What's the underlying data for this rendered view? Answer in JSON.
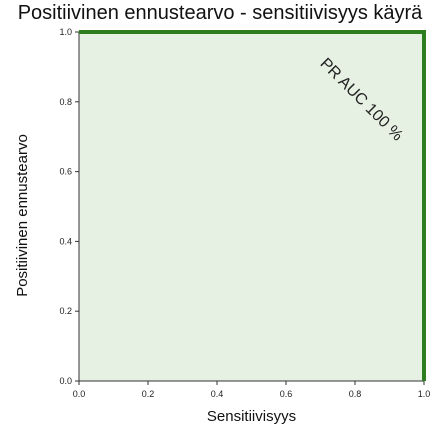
{
  "chart_data": {
    "type": "line",
    "title": "Positiivinen ennustearvo - sensitiivisyys käyrä",
    "xlabel": "Sensitiivisyys",
    "ylabel": "Positiivinen ennustearvo",
    "xlim": [
      0,
      1
    ],
    "ylim": [
      0,
      1
    ],
    "xticks": [
      "0.0",
      "0.2",
      "0.4",
      "0.6",
      "0.8",
      "1.0"
    ],
    "yticks": [
      "0.0",
      "0.2",
      "0.4",
      "0.6",
      "0.8",
      "1.0"
    ],
    "series": [
      {
        "x": [
          0.0,
          1.0,
          1.0
        ],
        "y": [
          1.0,
          1.0,
          0.0
        ]
      }
    ],
    "annotation": "PR AUC 100 %",
    "colors": {
      "line": "#2e7d1e",
      "fill": "#e6f0e3"
    },
    "grid": false
  }
}
